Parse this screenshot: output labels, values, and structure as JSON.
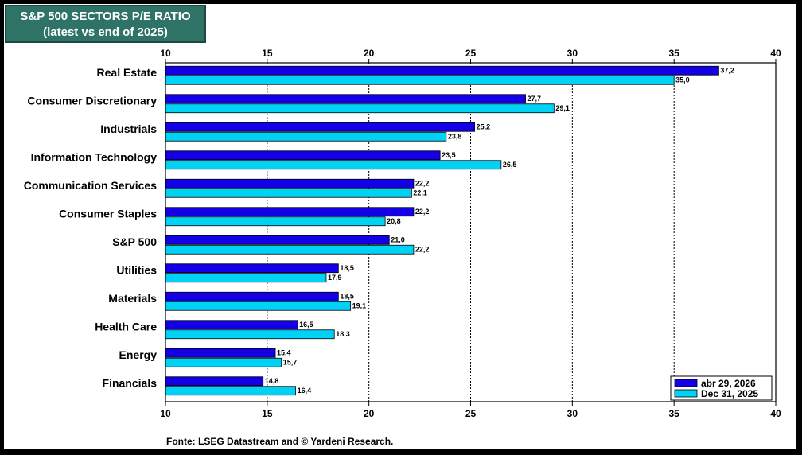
{
  "header": {
    "title": "S&P 500 SECTORS P/E RATIO",
    "subtitle": "(latest vs end of 2025)"
  },
  "source": "Fonte: LSEG Datastream and © Yardeni Research.",
  "colors": {
    "series_latest": "#1400e6",
    "series_prior": "#00d2f5",
    "title_bg": "#2e7366"
  },
  "chart_data": {
    "type": "bar",
    "orientation": "horizontal",
    "categories": [
      "Real Estate",
      "Consumer Discretionary",
      "Industrials",
      "Information Technology",
      "Communication Services",
      "Consumer Staples",
      "S&P 500",
      "Utilities",
      "Materials",
      "Health Care",
      "Energy",
      "Financials"
    ],
    "series": [
      {
        "name": "abr 29, 2026",
        "values": [
          37.2,
          27.7,
          25.2,
          23.5,
          22.2,
          22.2,
          21.0,
          18.5,
          18.5,
          16.5,
          15.4,
          14.8
        ],
        "labels": [
          "37,2",
          "27,7",
          "25,2",
          "23,5",
          "22,2",
          "22,2",
          "21,0",
          "18,5",
          "18,5",
          "16,5",
          "15,4",
          "14,8"
        ]
      },
      {
        "name": "Dec 31, 2025",
        "values": [
          35.0,
          29.1,
          23.8,
          26.5,
          22.1,
          20.8,
          22.2,
          17.9,
          19.1,
          18.3,
          15.7,
          16.4
        ],
        "labels": [
          "35,0",
          "29,1",
          "23,8",
          "26,5",
          "22,1",
          "20,8",
          "22,2",
          "17,9",
          "19,1",
          "18,3",
          "15,7",
          "16,4"
        ]
      }
    ],
    "xlim": [
      10,
      40
    ],
    "xticks": [
      10,
      15,
      20,
      25,
      30,
      35,
      40
    ],
    "grid": "vertical dotted",
    "legend_position": "bottom-right"
  }
}
